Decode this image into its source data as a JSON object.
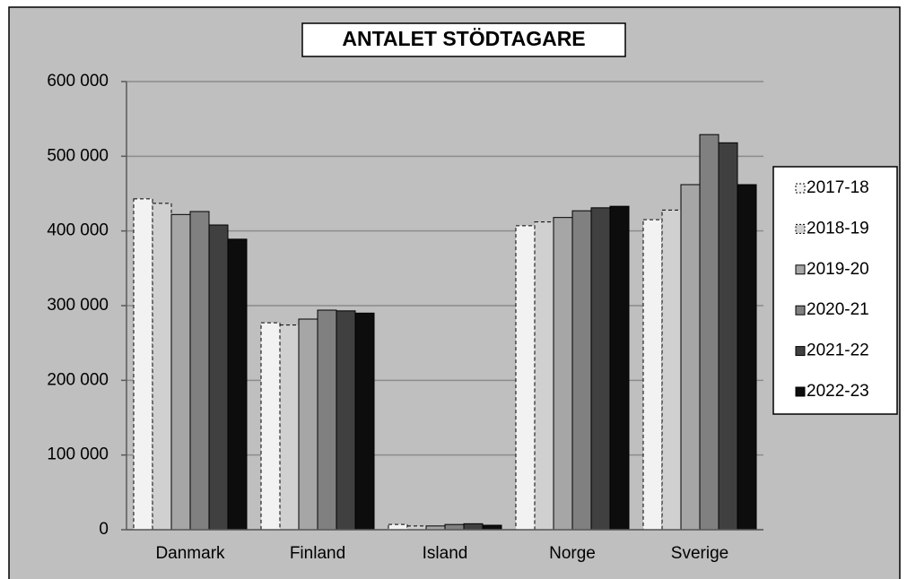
{
  "chart_data": {
    "type": "bar",
    "title": "ANTALET STÖDTAGARE",
    "categories": [
      "Danmark",
      "Finland",
      "Island",
      "Norge",
      "Sverige"
    ],
    "series": [
      {
        "name": "2017-18",
        "color": "#f2f2f2",
        "values": [
          443000,
          277000,
          7000,
          407000,
          415000
        ]
      },
      {
        "name": "2018-19",
        "color": "#d0d0d0",
        "values": [
          437000,
          274000,
          5000,
          412000,
          428000
        ]
      },
      {
        "name": "2019-20",
        "color": "#a6a6a6",
        "values": [
          422000,
          282000,
          5000,
          418000,
          462000
        ]
      },
      {
        "name": "2020-21",
        "color": "#808080",
        "values": [
          426000,
          294000,
          7000,
          427000,
          529000
        ]
      },
      {
        "name": "2021-22",
        "color": "#404040",
        "values": [
          408000,
          293000,
          8000,
          431000,
          518000
        ]
      },
      {
        "name": "2022-23",
        "color": "#0d0d0d",
        "values": [
          389000,
          290000,
          6000,
          433000,
          462000
        ]
      }
    ],
    "ylim": [
      0,
      600000
    ],
    "yticks": [
      0,
      {
        "value": 100000,
        "label": "100 000"
      },
      {
        "value": 200000,
        "label": "200 000"
      },
      {
        "value": 300000,
        "label": "300 000"
      },
      {
        "value": 400000,
        "label": "400 000"
      },
      {
        "value": 500000,
        "label": "500 000"
      },
      {
        "value": 600000,
        "label": "600 000"
      }
    ],
    "grid": true,
    "legend": "right"
  }
}
